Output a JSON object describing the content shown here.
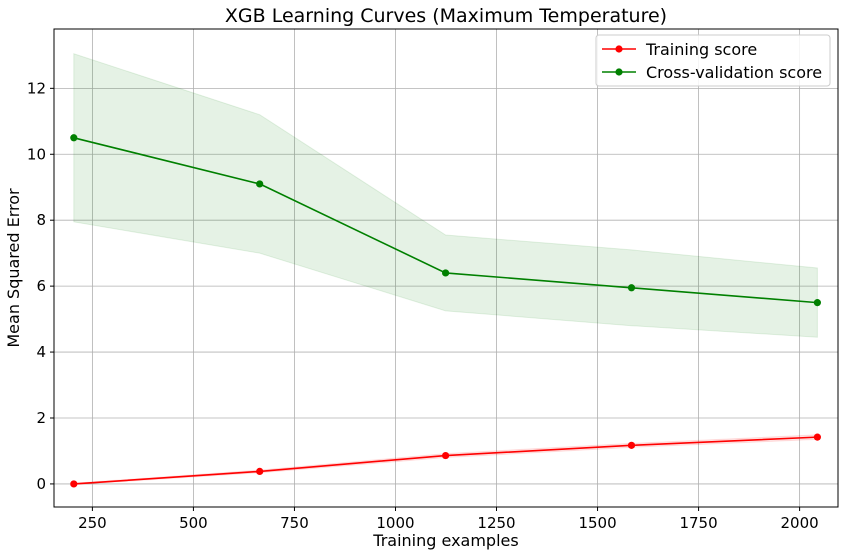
{
  "chart_data": {
    "type": "line",
    "title": "XGB Learning Curves (Maximum Temperature)",
    "xlabel": "Training examples",
    "ylabel": "Mean Squared Error",
    "xlim": [
      155,
      2095
    ],
    "ylim": [
      -0.7,
      13.8
    ],
    "xticks": [
      250,
      500,
      750,
      1000,
      1250,
      1500,
      1750,
      2000
    ],
    "yticks": [
      0,
      2,
      4,
      6,
      8,
      10,
      12
    ],
    "grid": true,
    "legend_position": "top-right",
    "x": [
      204,
      664,
      1124,
      1584,
      2044
    ],
    "series": [
      {
        "name": "Training score",
        "color": "#ff0000",
        "band_color": "#ff0000",
        "values": [
          0.0,
          0.38,
          0.86,
          1.17,
          1.42
        ],
        "upper": [
          0.02,
          0.42,
          0.92,
          1.23,
          1.49
        ],
        "lower": [
          -0.02,
          0.34,
          0.8,
          1.11,
          1.35
        ]
      },
      {
        "name": "Cross-validation score",
        "color": "#008000",
        "band_color": "#008000",
        "values": [
          10.5,
          9.1,
          6.4,
          5.95,
          5.5
        ],
        "upper": [
          13.05,
          11.2,
          7.55,
          7.1,
          6.55
        ],
        "lower": [
          7.95,
          7.0,
          5.25,
          4.8,
          4.45
        ]
      }
    ]
  }
}
